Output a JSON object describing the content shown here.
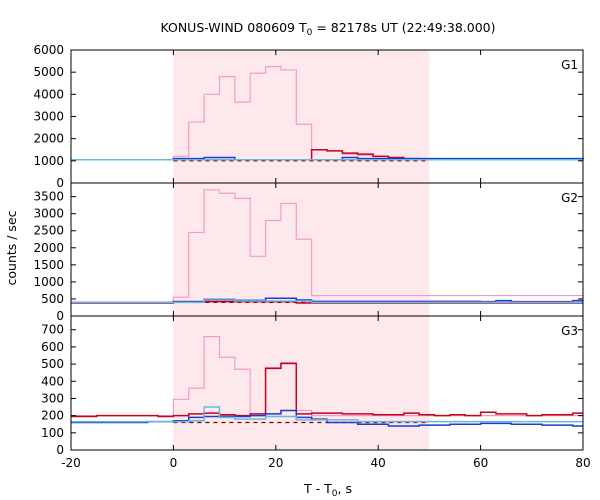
{
  "title_parts": {
    "prefix": "KONUS-WIND 080609 T",
    "sub": "0",
    "suffix": " = 82178s UT (22:49:38.000)"
  },
  "ylabel": "counts / sec",
  "xlabel_parts": {
    "prefix": "T - T",
    "sub": "0",
    "suffix": ", s"
  },
  "colors": {
    "pink": "#f49ac8",
    "red": "#c8001e",
    "blue": "#1a3bd0",
    "cyan": "#66b8e0",
    "shade": "#fde9ec",
    "dash": "#6a0000"
  },
  "chart_data": [
    {
      "type": "line",
      "panel": "G1",
      "xlim": [
        -20,
        80
      ],
      "ylim": [
        0,
        6000
      ],
      "yticks": [
        0,
        1000,
        2000,
        3000,
        4000,
        5000,
        6000
      ],
      "xticks": [
        -20,
        0,
        20,
        40,
        60,
        80
      ],
      "shade_x": [
        0,
        50
      ],
      "background_level": 1000,
      "series": [
        {
          "color": "pink",
          "steps": [
            [
              -20,
              1050
            ],
            [
              0,
              1200
            ],
            [
              3,
              2750
            ],
            [
              6,
              4000
            ],
            [
              9,
              4800
            ],
            [
              12,
              3650
            ],
            [
              15,
              4950
            ],
            [
              18,
              5250
            ],
            [
              21,
              5100
            ],
            [
              24,
              2650
            ],
            [
              27,
              1500
            ],
            [
              30,
              1450
            ],
            [
              33,
              1300
            ],
            [
              36,
              1250
            ],
            [
              39,
              1200
            ],
            [
              42,
              1150
            ],
            [
              45,
              1100
            ],
            [
              48,
              1050
            ],
            [
              80,
              1050
            ]
          ]
        },
        {
          "color": "red",
          "steps": [
            [
              -20,
              1050
            ],
            [
              0,
              1050
            ],
            [
              27,
              1500
            ],
            [
              30,
              1450
            ],
            [
              33,
              1350
            ],
            [
              36,
              1300
            ],
            [
              39,
              1200
            ],
            [
              42,
              1150
            ],
            [
              45,
              1100
            ],
            [
              48,
              1050
            ],
            [
              80,
              1050
            ]
          ]
        },
        {
          "color": "blue",
          "steps": [
            [
              -20,
              1050
            ],
            [
              0,
              1100
            ],
            [
              6,
              1150
            ],
            [
              12,
              1050
            ],
            [
              30,
              1050
            ],
            [
              33,
              1150
            ],
            [
              36,
              1100
            ],
            [
              42,
              1100
            ],
            [
              80,
              1050
            ]
          ]
        },
        {
          "color": "cyan",
          "steps": [
            [
              -20,
              1050
            ],
            [
              80,
              1050
            ]
          ]
        }
      ]
    },
    {
      "type": "line",
      "panel": "G2",
      "xlim": [
        -20,
        80
      ],
      "ylim": [
        0,
        3900
      ],
      "yticks": [
        0,
        500,
        1000,
        1500,
        2000,
        2500,
        3000,
        3500
      ],
      "xticks": [
        -20,
        0,
        20,
        40,
        60,
        80
      ],
      "shade_x": [
        0,
        50
      ],
      "background_level": 400,
      "series": [
        {
          "color": "pink",
          "steps": [
            [
              -20,
              400
            ],
            [
              0,
              550
            ],
            [
              3,
              2450
            ],
            [
              6,
              3700
            ],
            [
              9,
              3600
            ],
            [
              12,
              3450
            ],
            [
              15,
              1750
            ],
            [
              18,
              2800
            ],
            [
              21,
              3300
            ],
            [
              24,
              2250
            ],
            [
              27,
              600
            ],
            [
              80,
              400
            ]
          ]
        },
        {
          "color": "red",
          "steps": [
            [
              -20,
              380
            ],
            [
              0,
              420
            ],
            [
              24,
              380
            ],
            [
              80,
              380
            ]
          ]
        },
        {
          "color": "blue",
          "steps": [
            [
              -20,
              400
            ],
            [
              0,
              420
            ],
            [
              6,
              480
            ],
            [
              12,
              460
            ],
            [
              18,
              520
            ],
            [
              24,
              470
            ],
            [
              27,
              430
            ],
            [
              60,
              420
            ],
            [
              63,
              450
            ],
            [
              66,
              420
            ],
            [
              78,
              450
            ],
            [
              80,
              450
            ]
          ]
        },
        {
          "color": "cyan",
          "steps": [
            [
              -20,
              400
            ],
            [
              6,
              500
            ],
            [
              12,
              440
            ],
            [
              27,
              400
            ],
            [
              80,
              400
            ]
          ]
        }
      ]
    },
    {
      "type": "line",
      "panel": "G3",
      "xlim": [
        -20,
        80
      ],
      "ylim": [
        0,
        780
      ],
      "yticks": [
        0,
        100,
        200,
        300,
        400,
        500,
        600,
        700
      ],
      "xticks": [
        -20,
        0,
        20,
        40,
        60,
        80
      ],
      "shade_x": [
        0,
        50
      ],
      "background_level": 160,
      "series": [
        {
          "color": "pink",
          "steps": [
            [
              -20,
              200
            ],
            [
              0,
              295
            ],
            [
              3,
              360
            ],
            [
              6,
              660
            ],
            [
              9,
              540
            ],
            [
              12,
              470
            ],
            [
              15,
              210
            ],
            [
              18,
              480
            ],
            [
              21,
              500
            ],
            [
              24,
              230
            ],
            [
              27,
              200
            ],
            [
              80,
              200
            ]
          ]
        },
        {
          "color": "red",
          "steps": [
            [
              -20,
              195
            ],
            [
              -15,
              200
            ],
            [
              -3,
              195
            ],
            [
              0,
              200
            ],
            [
              3,
              210
            ],
            [
              6,
              215
            ],
            [
              9,
              205
            ],
            [
              12,
              200
            ],
            [
              15,
              210
            ],
            [
              18,
              475
            ],
            [
              21,
              505
            ],
            [
              24,
              210
            ],
            [
              27,
              215
            ],
            [
              33,
              210
            ],
            [
              39,
              205
            ],
            [
              45,
              215
            ],
            [
              48,
              205
            ],
            [
              51,
              200
            ],
            [
              54,
              205
            ],
            [
              57,
              200
            ],
            [
              60,
              220
            ],
            [
              63,
              210
            ],
            [
              69,
              200
            ],
            [
              72,
              205
            ],
            [
              78,
              215
            ],
            [
              80,
              215
            ]
          ]
        },
        {
          "color": "blue",
          "steps": [
            [
              -20,
              160
            ],
            [
              -5,
              165
            ],
            [
              0,
              170
            ],
            [
              3,
              190
            ],
            [
              6,
              195
            ],
            [
              12,
              195
            ],
            [
              15,
              200
            ],
            [
              18,
              210
            ],
            [
              21,
              230
            ],
            [
              24,
              190
            ],
            [
              27,
              180
            ],
            [
              30,
              160
            ],
            [
              36,
              150
            ],
            [
              42,
              140
            ],
            [
              48,
              145
            ],
            [
              54,
              150
            ],
            [
              60,
              155
            ],
            [
              66,
              150
            ],
            [
              72,
              145
            ],
            [
              78,
              140
            ],
            [
              80,
              140
            ]
          ]
        },
        {
          "color": "cyan",
          "steps": [
            [
              -20,
              165
            ],
            [
              3,
              170
            ],
            [
              6,
              250
            ],
            [
              9,
              190
            ],
            [
              12,
              180
            ],
            [
              18,
              195
            ],
            [
              24,
              175
            ],
            [
              36,
              165
            ],
            [
              80,
              165
            ]
          ]
        }
      ]
    }
  ],
  "panel_labels": [
    "G1",
    "G2",
    "G3"
  ]
}
